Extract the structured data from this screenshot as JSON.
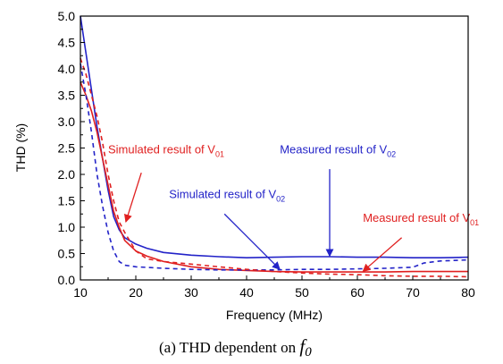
{
  "chart_data": {
    "type": "line",
    "xlabel": "Frequency  (MHz)",
    "ylabel": "THD (%)",
    "xlim": [
      10,
      80
    ],
    "ylim": [
      0.0,
      5.0
    ],
    "xticks": [
      10,
      20,
      30,
      40,
      50,
      60,
      70,
      80
    ],
    "yticks": [
      "0.0",
      "0.5",
      "1.0",
      "1.5",
      "2.0",
      "2.5",
      "3.0",
      "3.5",
      "4.0",
      "4.5",
      "5.0"
    ],
    "grid": false,
    "caption": {
      "prefix": "(a)  THD dependent on ",
      "symbol": "f",
      "subscript": "0"
    },
    "series": [
      {
        "id": "meas-v02",
        "color": "#2323c8",
        "dash": "solid",
        "points": [
          [
            10,
            5.0
          ],
          [
            11,
            4.3
          ],
          [
            12,
            3.6
          ],
          [
            13,
            2.9
          ],
          [
            14,
            2.3
          ],
          [
            15,
            1.7
          ],
          [
            16,
            1.2
          ],
          [
            17,
            0.95
          ],
          [
            18,
            0.8
          ],
          [
            20,
            0.68
          ],
          [
            22,
            0.6
          ],
          [
            25,
            0.52
          ],
          [
            30,
            0.47
          ],
          [
            35,
            0.44
          ],
          [
            40,
            0.42
          ],
          [
            45,
            0.43
          ],
          [
            50,
            0.44
          ],
          [
            55,
            0.44
          ],
          [
            60,
            0.43
          ],
          [
            65,
            0.43
          ],
          [
            70,
            0.42
          ],
          [
            75,
            0.42
          ],
          [
            80,
            0.43
          ]
        ]
      },
      {
        "id": "meas-v01",
        "color": "#e02020",
        "dash": "solid",
        "points": [
          [
            10,
            3.75
          ],
          [
            11,
            3.5
          ],
          [
            12,
            3.2
          ],
          [
            13,
            2.8
          ],
          [
            14,
            2.3
          ],
          [
            15,
            1.8
          ],
          [
            16,
            1.3
          ],
          [
            17,
            1.0
          ],
          [
            18,
            0.75
          ],
          [
            20,
            0.55
          ],
          [
            22,
            0.45
          ],
          [
            25,
            0.35
          ],
          [
            30,
            0.25
          ],
          [
            35,
            0.2
          ],
          [
            40,
            0.18
          ],
          [
            45,
            0.16
          ],
          [
            50,
            0.15
          ],
          [
            55,
            0.15
          ],
          [
            60,
            0.15
          ],
          [
            65,
            0.15
          ],
          [
            70,
            0.16
          ],
          [
            75,
            0.16
          ],
          [
            80,
            0.16
          ]
        ]
      },
      {
        "id": "sim-v02",
        "color": "#2323c8",
        "dash": "5,4",
        "points": [
          [
            10,
            4.1
          ],
          [
            11,
            3.5
          ],
          [
            12,
            2.8
          ],
          [
            13,
            2.0
          ],
          [
            14,
            1.4
          ],
          [
            15,
            0.9
          ],
          [
            16,
            0.55
          ],
          [
            17,
            0.35
          ],
          [
            18,
            0.28
          ],
          [
            20,
            0.25
          ],
          [
            25,
            0.22
          ],
          [
            30,
            0.2
          ],
          [
            35,
            0.19
          ],
          [
            40,
            0.19
          ],
          [
            45,
            0.19
          ],
          [
            50,
            0.2
          ],
          [
            55,
            0.2
          ],
          [
            60,
            0.21
          ],
          [
            65,
            0.22
          ],
          [
            70,
            0.24
          ],
          [
            72,
            0.32
          ],
          [
            75,
            0.36
          ],
          [
            80,
            0.38
          ]
        ]
      },
      {
        "id": "sim-v01",
        "color": "#e02020",
        "dash": "5,4",
        "points": [
          [
            10,
            4.2
          ],
          [
            11,
            3.9
          ],
          [
            12,
            3.5
          ],
          [
            13,
            3.1
          ],
          [
            14,
            2.6
          ],
          [
            15,
            2.0
          ],
          [
            16,
            1.5
          ],
          [
            17,
            1.1
          ],
          [
            18,
            0.9
          ],
          [
            20,
            0.55
          ],
          [
            22,
            0.4
          ],
          [
            25,
            0.35
          ],
          [
            30,
            0.3
          ],
          [
            35,
            0.25
          ],
          [
            40,
            0.2
          ],
          [
            45,
            0.16
          ],
          [
            50,
            0.13
          ],
          [
            55,
            0.11
          ],
          [
            60,
            0.1
          ],
          [
            65,
            0.08
          ],
          [
            70,
            0.07
          ],
          [
            75,
            0.07
          ],
          [
            80,
            0.06
          ]
        ]
      }
    ],
    "annotations": [
      {
        "id": "anno-sim-v01",
        "main": "Simulated result of V",
        "sub": "01",
        "color": "#e02020",
        "text_at": [
          15.0,
          2.4
        ],
        "arrow_from": [
          21.0,
          2.03
        ],
        "arrow_to": [
          18.2,
          1.1
        ]
      },
      {
        "id": "anno-meas-v02",
        "main": "Measured result of V",
        "sub": "02",
        "color": "#2323c8",
        "text_at": [
          46.0,
          2.4
        ],
        "arrow_from": [
          55.0,
          2.1
        ],
        "arrow_to": [
          55.0,
          0.45
        ]
      },
      {
        "id": "anno-sim-v02",
        "main": "Simulated result of V",
        "sub": "02",
        "color": "#2323c8",
        "text_at": [
          26.0,
          1.55
        ],
        "arrow_from": [
          36.0,
          1.25
        ],
        "arrow_to": [
          46.0,
          0.2
        ]
      },
      {
        "id": "anno-meas-v01",
        "main": "Measured result of V",
        "sub": "01",
        "color": "#e02020",
        "text_at": [
          61.0,
          1.1
        ],
        "arrow_from": [
          68.0,
          0.8
        ],
        "arrow_to": [
          61.0,
          0.16
        ]
      }
    ]
  }
}
